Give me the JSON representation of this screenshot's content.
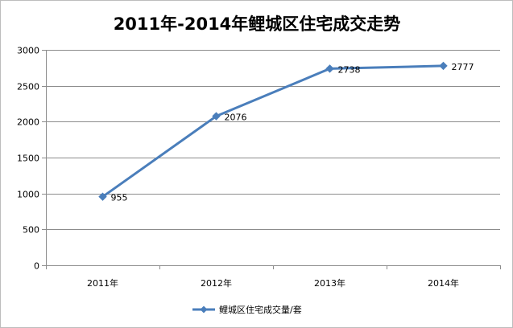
{
  "chart_data": {
    "type": "line",
    "title": "2011年-2014年鲤城区住宅成交走势",
    "categories": [
      "2011年",
      "2012年",
      "2013年",
      "2014年"
    ],
    "series": [
      {
        "name": "鲤城区住宅成交量/套",
        "values": [
          955,
          2076,
          2738,
          2777
        ],
        "color": "#4a7ebb"
      }
    ],
    "ylim": [
      0,
      3000
    ],
    "yticks": [
      0,
      500,
      1000,
      1500,
      2000,
      2500,
      3000
    ],
    "grid": true,
    "legend": "bottom",
    "data_labels": true
  }
}
